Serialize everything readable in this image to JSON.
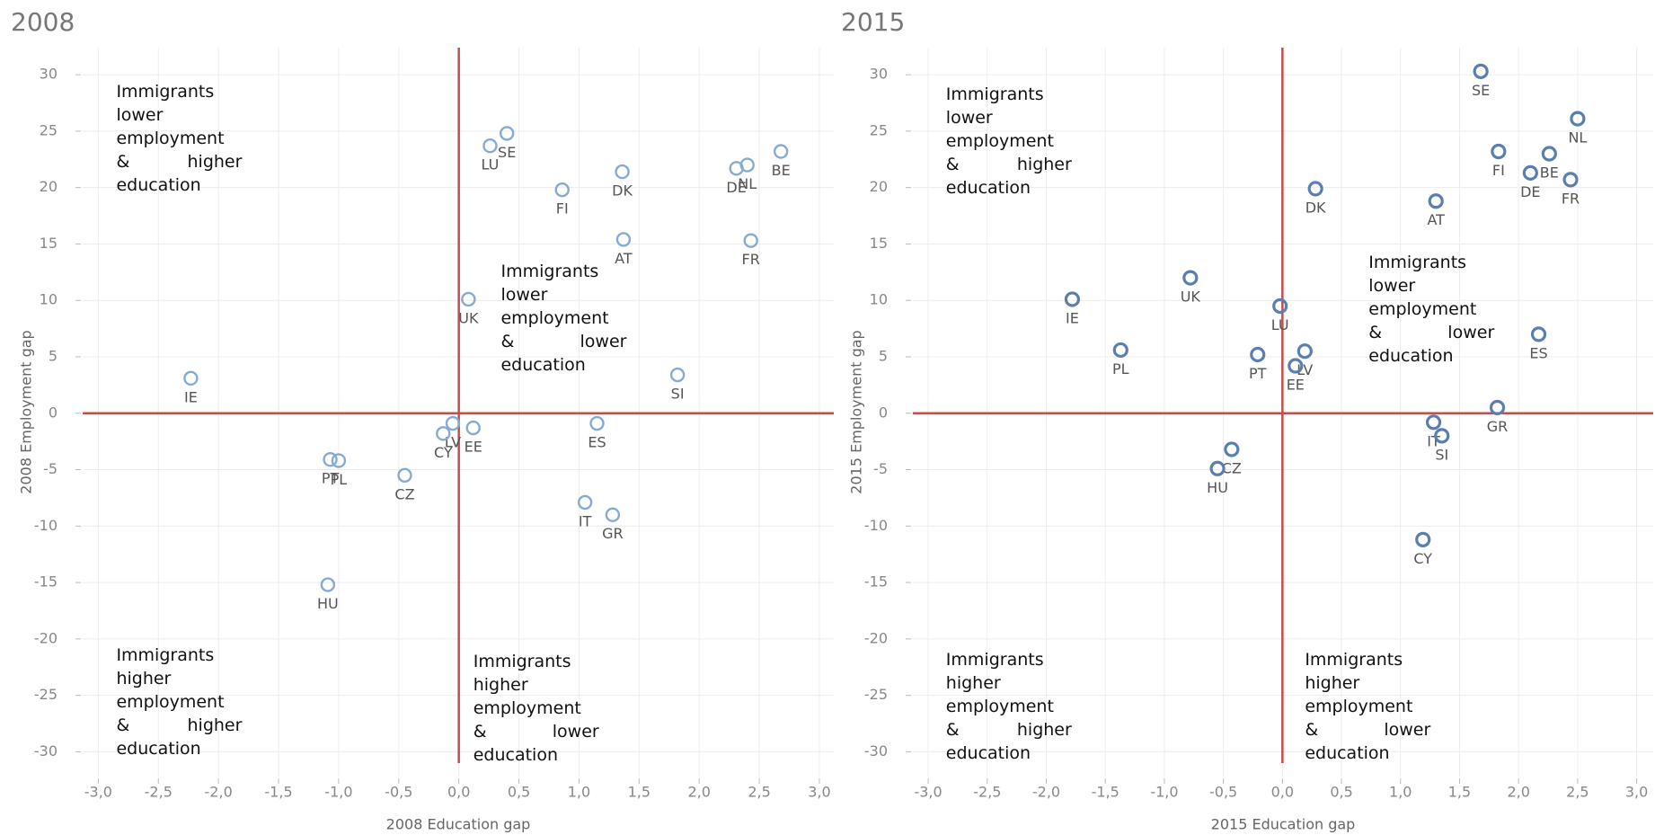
{
  "chart_data": [
    {
      "type": "scatter",
      "title": "2008",
      "x_label": "2008 Education gap",
      "y_label": "2008 Employment gap",
      "labels": [
        "SE",
        "LU",
        "FI",
        "DK",
        "AT",
        "DE",
        "NL",
        "BE",
        "FR",
        "UK",
        "IE",
        "SI",
        "LV",
        "CY",
        "EE",
        "ES",
        "PT",
        "PL",
        "CZ",
        "IT",
        "GR",
        "HU"
      ],
      "x": [
        0.4,
        0.26,
        0.86,
        1.36,
        1.37,
        2.31,
        2.4,
        2.68,
        2.43,
        0.08,
        -2.23,
        1.82,
        -0.05,
        -0.13,
        0.12,
        1.15,
        -1.07,
        -1.0,
        -0.45,
        1.05,
        1.28,
        -1.09
      ],
      "y": [
        24.8,
        23.7,
        19.8,
        21.4,
        15.4,
        21.7,
        22.0,
        23.2,
        15.3,
        10.1,
        3.1,
        3.4,
        -0.9,
        -1.8,
        -1.3,
        -0.9,
        -4.1,
        -4.2,
        -5.5,
        -7.9,
        -9.0,
        -15.2
      ],
      "color": "#86abd3",
      "reference_color": "#c0504d",
      "x_reference": 0,
      "y_reference": 0,
      "xlim": [
        -3.13,
        3.12
      ],
      "ylim": [
        -32.2,
        32.4
      ],
      "xticks": [
        {
          "value": -3,
          "label": "-3,0"
        },
        {
          "value": -2.5,
          "label": "-2,5"
        },
        {
          "value": -2,
          "label": "-2,0"
        },
        {
          "value": -1.5,
          "label": "-1,5"
        },
        {
          "value": -1,
          "label": "-1,0"
        },
        {
          "value": -0.5,
          "label": "-0,5"
        },
        {
          "value": 0,
          "label": "0,0"
        },
        {
          "value": 0.5,
          "label": "0,5"
        },
        {
          "value": 1,
          "label": "1,0"
        },
        {
          "value": 1.5,
          "label": "1,5"
        },
        {
          "value": 2,
          "label": "2,0"
        },
        {
          "value": 2.5,
          "label": "2,5"
        },
        {
          "value": 3,
          "label": "3,0"
        }
      ],
      "yticks": [
        30,
        25,
        20,
        15,
        10,
        5,
        0,
        -5,
        -10,
        -15,
        -20,
        -25,
        -30
      ],
      "grid": true,
      "annotations": [
        "Immigrants lower employment & higher education",
        "Immigrants lower employment & lower education",
        "Immigrants higher employment & higher education",
        "Immigrants higher employment & lower education"
      ]
    },
    {
      "type": "scatter",
      "title": "2015",
      "x_label": "2015 Education gap",
      "y_label": "2015 Employment gap",
      "labels": [
        "SE",
        "NL",
        "BE",
        "FI",
        "DE",
        "FR",
        "AT",
        "DK",
        "UK",
        "IE",
        "LU",
        "PL",
        "PT",
        "LV",
        "EE",
        "ES",
        "GR",
        "IT",
        "SI",
        "CZ",
        "HU",
        "CY"
      ],
      "x": [
        1.68,
        2.5,
        2.26,
        1.83,
        2.1,
        2.44,
        1.3,
        0.28,
        -0.78,
        -1.78,
        -0.02,
        -1.37,
        -0.21,
        0.19,
        0.11,
        2.17,
        1.82,
        1.28,
        1.35,
        -0.43,
        -0.55,
        1.19
      ],
      "y": [
        30.3,
        26.1,
        23.0,
        23.2,
        21.3,
        20.7,
        18.8,
        19.9,
        12.0,
        10.1,
        9.5,
        5.6,
        5.2,
        5.5,
        4.2,
        7.0,
        0.5,
        -0.8,
        -2.0,
        -3.2,
        -4.9,
        -11.2
      ],
      "color": "#5a7fae",
      "reference_color": "#c0504d",
      "x_reference": 0,
      "y_reference": 0,
      "xlim": [
        -3.13,
        3.14
      ],
      "ylim": [
        -32.2,
        32.4
      ],
      "xticks": [
        {
          "value": -3,
          "label": "-3,0"
        },
        {
          "value": -2.5,
          "label": "-2,5"
        },
        {
          "value": -2,
          "label": "-2,0"
        },
        {
          "value": -1.5,
          "label": "-1,5"
        },
        {
          "value": -1,
          "label": "-1,0"
        },
        {
          "value": -0.5,
          "label": "-0,5"
        },
        {
          "value": 0,
          "label": "0,0"
        },
        {
          "value": 0.5,
          "label": "0,5"
        },
        {
          "value": 1,
          "label": "1,0"
        },
        {
          "value": 1.5,
          "label": "1,5"
        },
        {
          "value": 2,
          "label": "2,0"
        },
        {
          "value": 2.5,
          "label": "2,5"
        },
        {
          "value": 3,
          "label": "3,0"
        }
      ],
      "yticks": [
        30,
        25,
        20,
        15,
        10,
        5,
        0,
        -5,
        -10,
        -15,
        -20,
        -25,
        -30
      ],
      "grid": true,
      "annotations": [
        "Immigrants lower employment & higher education",
        "Immigrants lower employment & lower education",
        "Immigrants higher employment & higher education",
        "Immigrants higher employment & lower education"
      ]
    }
  ]
}
